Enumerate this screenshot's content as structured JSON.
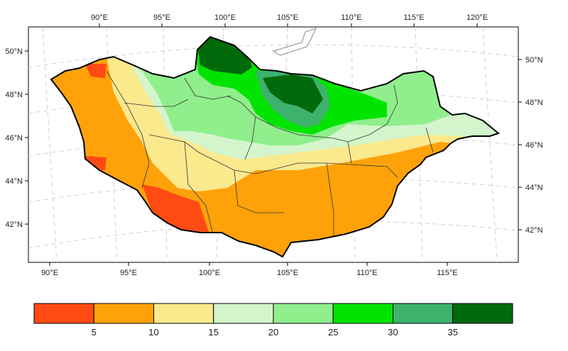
{
  "map": {
    "top_lon_labels": [
      "90°E",
      "95°E",
      "100°E",
      "105°E",
      "110°E",
      "115°E",
      "120°E"
    ],
    "bottom_lon_labels": [
      "90°E",
      "95°E",
      "100°E",
      "105°E",
      "110°E",
      "115°E"
    ],
    "left_lat_labels": [
      "50°N",
      "48°N",
      "46°N",
      "44°N",
      "42°N"
    ],
    "right_lat_labels": [
      "50°N",
      "48°N",
      "46°N",
      "44°N",
      "42°N"
    ]
  },
  "colorbar": {
    "colors": [
      "#ff4a14",
      "#ffa20a",
      "#fbe98e",
      "#d4f5cc",
      "#90ee8c",
      "#00e400",
      "#3cb26d",
      "#016a0b"
    ],
    "tick_labels": [
      "5",
      "10",
      "15",
      "20",
      "25",
      "30",
      "35"
    ]
  },
  "legend_colors": {
    "border": "#000000",
    "region_border": "#333333",
    "grid": "#cccccc",
    "water": "#ffffff"
  }
}
